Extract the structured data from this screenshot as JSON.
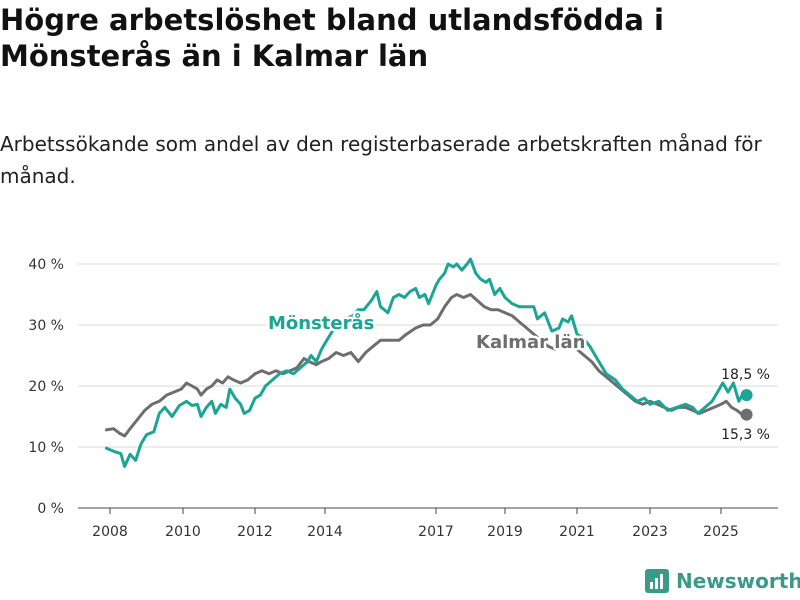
{
  "title": "Högre arbetslöshet bland utlandsfödda i Mönsterås än i Kalmar län",
  "subtitle": "Arbetssökande som andel av den registerbaserade arbetskraften månad för månad.",
  "brand": {
    "name": "Newsworthy"
  },
  "colors": {
    "primary": "#1aa595",
    "secondary": "#6e6e6e",
    "grid": "#d9d9d9",
    "brand": "#3a9a8a"
  },
  "chart_data": {
    "type": "line",
    "title": "Högre arbetslöshet bland utlandsfödda i Mönsterås än i Kalmar län",
    "xlabel": "",
    "ylabel": "",
    "xlim": [
      2007.9,
      2026.2
    ],
    "ylim": [
      0,
      40
    ],
    "y_ticks": [
      0,
      10,
      20,
      30,
      40
    ],
    "y_tick_labels": [
      "0 %",
      "10 %",
      "20 %",
      "30 %",
      "40 %"
    ],
    "x_ticks": [
      2008,
      2010,
      2012,
      2014,
      2017,
      2019,
      2021,
      2023,
      2025
    ],
    "x_tick_labels": [
      "2008",
      "2010",
      "2012",
      "2014",
      "2017",
      "2019",
      "2021",
      "2023",
      "2025"
    ],
    "grid": true,
    "series": [
      {
        "name": "Mönsterås",
        "label": "Mönsterås",
        "end_label": "18,5 %",
        "color": "#1aa595",
        "points": [
          [
            2007.9,
            9.8
          ],
          [
            2008.1,
            9.3
          ],
          [
            2008.3,
            8.9
          ],
          [
            2008.4,
            6.8
          ],
          [
            2008.55,
            8.8
          ],
          [
            2008.7,
            7.8
          ],
          [
            2008.85,
            10.5
          ],
          [
            2009.0,
            12.0
          ],
          [
            2009.2,
            12.5
          ],
          [
            2009.35,
            15.5
          ],
          [
            2009.5,
            16.5
          ],
          [
            2009.7,
            15.0
          ],
          [
            2009.9,
            16.8
          ],
          [
            2010.1,
            17.5
          ],
          [
            2010.25,
            16.8
          ],
          [
            2010.4,
            17.0
          ],
          [
            2010.5,
            15.0
          ],
          [
            2010.65,
            16.5
          ],
          [
            2010.8,
            17.5
          ],
          [
            2010.9,
            15.5
          ],
          [
            2011.05,
            17.0
          ],
          [
            2011.2,
            16.5
          ],
          [
            2011.3,
            19.5
          ],
          [
            2011.45,
            18.0
          ],
          [
            2011.6,
            17.0
          ],
          [
            2011.7,
            15.5
          ],
          [
            2011.85,
            16.0
          ],
          [
            2012.0,
            18.0
          ],
          [
            2012.15,
            18.5
          ],
          [
            2012.3,
            20.0
          ],
          [
            2012.5,
            21.0
          ],
          [
            2012.7,
            22.0
          ],
          [
            2012.9,
            22.5
          ],
          [
            2013.1,
            22.0
          ],
          [
            2013.3,
            23.0
          ],
          [
            2013.5,
            24.0
          ],
          [
            2013.6,
            25.0
          ],
          [
            2013.75,
            24.0
          ],
          [
            2013.9,
            26.0
          ],
          [
            2014.0,
            27.0
          ],
          [
            2014.2,
            29.0
          ],
          [
            2014.35,
            30.0
          ],
          [
            2014.55,
            31.0
          ],
          [
            2014.75,
            31.5
          ],
          [
            2014.9,
            32.5
          ],
          [
            2015.05,
            32.5
          ],
          [
            2015.25,
            34.0
          ],
          [
            2015.4,
            35.5
          ],
          [
            2015.5,
            33.0
          ],
          [
            2015.7,
            32.0
          ],
          [
            2015.85,
            34.5
          ],
          [
            2016.0,
            35.0
          ],
          [
            2016.15,
            34.5
          ],
          [
            2016.3,
            35.5
          ],
          [
            2016.45,
            36.0
          ],
          [
            2016.55,
            34.5
          ],
          [
            2016.7,
            35.0
          ],
          [
            2016.8,
            33.5
          ],
          [
            2016.9,
            35.0
          ],
          [
            2017.0,
            36.5
          ],
          [
            2017.1,
            37.5
          ],
          [
            2017.25,
            38.5
          ],
          [
            2017.35,
            40.0
          ],
          [
            2017.5,
            39.5
          ],
          [
            2017.6,
            40.0
          ],
          [
            2017.75,
            39.0
          ],
          [
            2017.9,
            40.0
          ],
          [
            2018.0,
            40.8
          ],
          [
            2018.15,
            38.5
          ],
          [
            2018.3,
            37.5
          ],
          [
            2018.45,
            37.0
          ],
          [
            2018.55,
            37.5
          ],
          [
            2018.7,
            35.0
          ],
          [
            2018.85,
            36.0
          ],
          [
            2019.0,
            34.5
          ],
          [
            2019.2,
            33.5
          ],
          [
            2019.4,
            33.0
          ],
          [
            2019.6,
            33.0
          ],
          [
            2019.8,
            33.0
          ],
          [
            2019.9,
            31.0
          ],
          [
            2020.1,
            32.0
          ],
          [
            2020.3,
            29.0
          ],
          [
            2020.5,
            29.5
          ],
          [
            2020.6,
            31.0
          ],
          [
            2020.75,
            30.5
          ],
          [
            2020.85,
            31.5
          ],
          [
            2021.0,
            28.5
          ],
          [
            2021.15,
            28.0
          ],
          [
            2021.35,
            26.5
          ],
          [
            2021.6,
            24.0
          ],
          [
            2021.8,
            22.0
          ],
          [
            2022.05,
            21.0
          ],
          [
            2022.25,
            19.5
          ],
          [
            2022.45,
            18.5
          ],
          [
            2022.65,
            17.5
          ],
          [
            2022.85,
            18.0
          ],
          [
            2023.0,
            17.0
          ],
          [
            2023.25,
            17.5
          ],
          [
            2023.5,
            16.0
          ],
          [
            2023.75,
            16.5
          ],
          [
            2024.0,
            17.0
          ],
          [
            2024.2,
            16.5
          ],
          [
            2024.35,
            15.5
          ],
          [
            2024.55,
            16.5
          ],
          [
            2024.75,
            17.5
          ],
          [
            2024.9,
            19.0
          ],
          [
            2025.05,
            20.5
          ],
          [
            2025.2,
            19.0
          ],
          [
            2025.35,
            20.5
          ],
          [
            2025.5,
            17.5
          ],
          [
            2025.6,
            18.5
          ],
          [
            2025.72,
            18.5
          ]
        ]
      },
      {
        "name": "Kalmar län",
        "label": "Kalmar län",
        "end_label": "15,3 %",
        "color": "#6e6e6e",
        "points": [
          [
            2007.9,
            12.8
          ],
          [
            2008.1,
            13.0
          ],
          [
            2008.25,
            12.3
          ],
          [
            2008.4,
            11.8
          ],
          [
            2008.55,
            13.0
          ],
          [
            2008.75,
            14.5
          ],
          [
            2008.95,
            16.0
          ],
          [
            2009.15,
            17.0
          ],
          [
            2009.35,
            17.5
          ],
          [
            2009.55,
            18.5
          ],
          [
            2009.75,
            19.0
          ],
          [
            2009.95,
            19.5
          ],
          [
            2010.1,
            20.5
          ],
          [
            2010.25,
            20.0
          ],
          [
            2010.4,
            19.5
          ],
          [
            2010.5,
            18.5
          ],
          [
            2010.65,
            19.5
          ],
          [
            2010.8,
            20.0
          ],
          [
            2010.95,
            21.0
          ],
          [
            2011.1,
            20.5
          ],
          [
            2011.25,
            21.5
          ],
          [
            2011.4,
            21.0
          ],
          [
            2011.6,
            20.5
          ],
          [
            2011.8,
            21.0
          ],
          [
            2012.0,
            22.0
          ],
          [
            2012.2,
            22.5
          ],
          [
            2012.4,
            22.0
          ],
          [
            2012.6,
            22.5
          ],
          [
            2012.8,
            22.0
          ],
          [
            2013.0,
            22.5
          ],
          [
            2013.2,
            23.0
          ],
          [
            2013.4,
            24.5
          ],
          [
            2013.55,
            24.0
          ],
          [
            2013.75,
            23.5
          ],
          [
            2013.9,
            24.0
          ],
          [
            2014.1,
            24.5
          ],
          [
            2014.3,
            25.5
          ],
          [
            2014.5,
            25.0
          ],
          [
            2014.7,
            25.5
          ],
          [
            2014.9,
            24.0
          ],
          [
            2015.1,
            25.5
          ],
          [
            2015.3,
            26.5
          ],
          [
            2015.5,
            27.5
          ],
          [
            2015.75,
            27.5
          ],
          [
            2016.0,
            27.5
          ],
          [
            2016.2,
            28.5
          ],
          [
            2016.45,
            29.5
          ],
          [
            2016.65,
            30.0
          ],
          [
            2016.85,
            30.0
          ],
          [
            2017.05,
            31.0
          ],
          [
            2017.25,
            33.0
          ],
          [
            2017.45,
            34.5
          ],
          [
            2017.6,
            35.0
          ],
          [
            2017.8,
            34.5
          ],
          [
            2018.0,
            35.0
          ],
          [
            2018.2,
            34.0
          ],
          [
            2018.4,
            33.0
          ],
          [
            2018.6,
            32.5
          ],
          [
            2018.8,
            32.5
          ],
          [
            2019.0,
            32.0
          ],
          [
            2019.2,
            31.5
          ],
          [
            2019.4,
            30.5
          ],
          [
            2019.6,
            29.5
          ],
          [
            2019.8,
            28.5
          ],
          [
            2020.0,
            27.5
          ],
          [
            2020.2,
            26.5
          ],
          [
            2020.4,
            26.0
          ],
          [
            2020.6,
            26.5
          ],
          [
            2020.8,
            27.0
          ],
          [
            2021.0,
            26.0
          ],
          [
            2021.2,
            25.0
          ],
          [
            2021.4,
            24.0
          ],
          [
            2021.6,
            22.5
          ],
          [
            2021.8,
            21.5
          ],
          [
            2022.0,
            20.5
          ],
          [
            2022.2,
            19.5
          ],
          [
            2022.4,
            18.5
          ],
          [
            2022.6,
            17.5
          ],
          [
            2022.8,
            17.0
          ],
          [
            2023.0,
            17.5
          ],
          [
            2023.2,
            17.0
          ],
          [
            2023.4,
            16.5
          ],
          [
            2023.6,
            16.0
          ],
          [
            2023.8,
            16.5
          ],
          [
            2024.0,
            16.5
          ],
          [
            2024.2,
            16.0
          ],
          [
            2024.4,
            15.5
          ],
          [
            2024.6,
            16.0
          ],
          [
            2024.8,
            16.5
          ],
          [
            2025.0,
            17.0
          ],
          [
            2025.15,
            17.5
          ],
          [
            2025.3,
            16.5
          ],
          [
            2025.45,
            16.0
          ],
          [
            2025.6,
            15.3
          ],
          [
            2025.72,
            15.3
          ]
        ]
      }
    ]
  }
}
